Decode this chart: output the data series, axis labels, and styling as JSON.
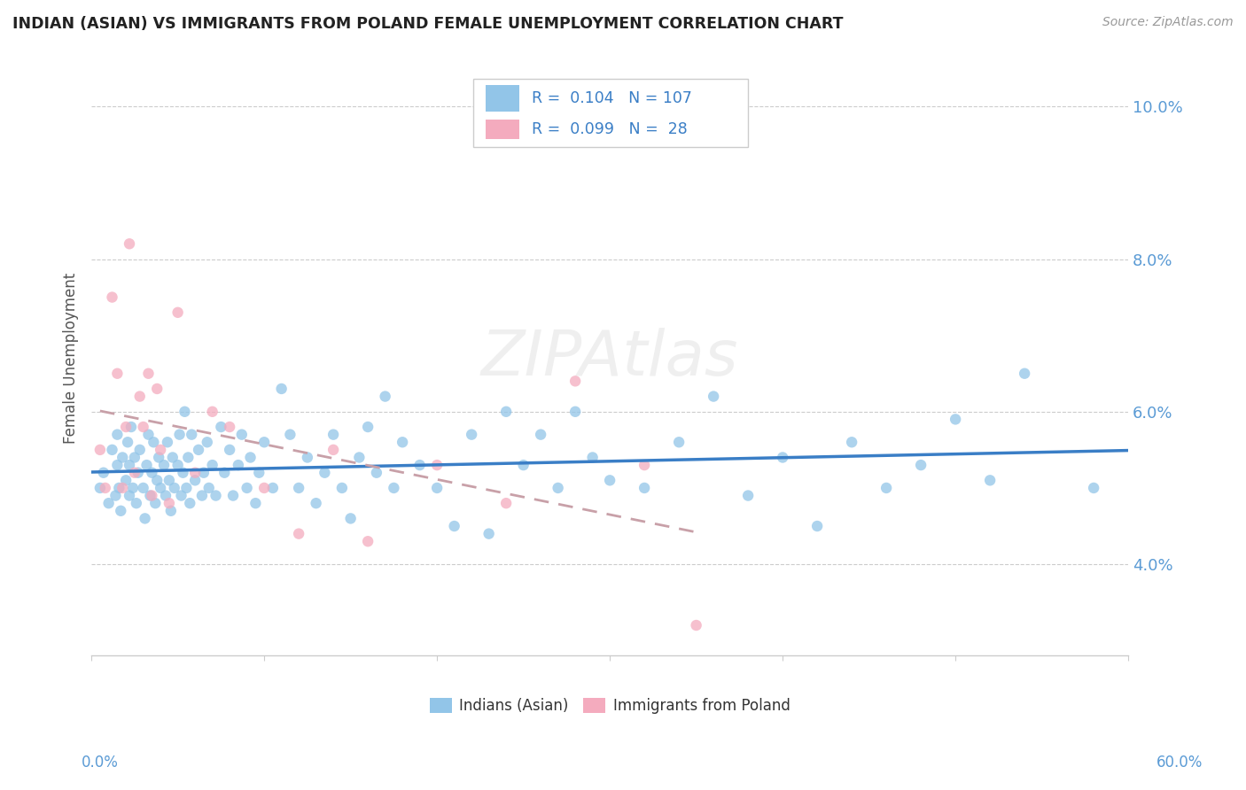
{
  "title": "INDIAN (ASIAN) VS IMMIGRANTS FROM POLAND FEMALE UNEMPLOYMENT CORRELATION CHART",
  "source_text": "Source: ZipAtlas.com",
  "ylabel": "Female Unemployment",
  "yticks": [
    "4.0%",
    "6.0%",
    "8.0%",
    "10.0%"
  ],
  "ytick_values": [
    0.04,
    0.06,
    0.08,
    0.1
  ],
  "xlim": [
    0.0,
    0.6
  ],
  "ylim": [
    0.028,
    0.106
  ],
  "legend_R1": "0.104",
  "legend_N1": "107",
  "legend_R2": "0.099",
  "legend_N2": "28",
  "color_indian": "#92C5E8",
  "color_poland": "#F4ABBE",
  "color_line_indian": "#3A7EC6",
  "color_line_poland": "#C8A0A8",
  "background_color": "#FFFFFF",
  "indian_x": [
    0.005,
    0.007,
    0.01,
    0.012,
    0.014,
    0.015,
    0.015,
    0.016,
    0.017,
    0.018,
    0.02,
    0.021,
    0.022,
    0.022,
    0.023,
    0.024,
    0.025,
    0.026,
    0.027,
    0.028,
    0.03,
    0.031,
    0.032,
    0.033,
    0.034,
    0.035,
    0.036,
    0.037,
    0.038,
    0.039,
    0.04,
    0.042,
    0.043,
    0.044,
    0.045,
    0.046,
    0.047,
    0.048,
    0.05,
    0.051,
    0.052,
    0.053,
    0.054,
    0.055,
    0.056,
    0.057,
    0.058,
    0.06,
    0.062,
    0.064,
    0.065,
    0.067,
    0.068,
    0.07,
    0.072,
    0.075,
    0.077,
    0.08,
    0.082,
    0.085,
    0.087,
    0.09,
    0.092,
    0.095,
    0.097,
    0.1,
    0.105,
    0.11,
    0.115,
    0.12,
    0.125,
    0.13,
    0.135,
    0.14,
    0.145,
    0.15,
    0.155,
    0.16,
    0.165,
    0.17,
    0.175,
    0.18,
    0.19,
    0.2,
    0.21,
    0.22,
    0.23,
    0.24,
    0.25,
    0.26,
    0.27,
    0.28,
    0.29,
    0.3,
    0.32,
    0.34,
    0.36,
    0.38,
    0.4,
    0.42,
    0.44,
    0.46,
    0.48,
    0.5,
    0.52,
    0.54,
    0.58
  ],
  "indian_y": [
    0.05,
    0.052,
    0.048,
    0.055,
    0.049,
    0.053,
    0.057,
    0.05,
    0.047,
    0.054,
    0.051,
    0.056,
    0.049,
    0.053,
    0.058,
    0.05,
    0.054,
    0.048,
    0.052,
    0.055,
    0.05,
    0.046,
    0.053,
    0.057,
    0.049,
    0.052,
    0.056,
    0.048,
    0.051,
    0.054,
    0.05,
    0.053,
    0.049,
    0.056,
    0.051,
    0.047,
    0.054,
    0.05,
    0.053,
    0.057,
    0.049,
    0.052,
    0.06,
    0.05,
    0.054,
    0.048,
    0.057,
    0.051,
    0.055,
    0.049,
    0.052,
    0.056,
    0.05,
    0.053,
    0.049,
    0.058,
    0.052,
    0.055,
    0.049,
    0.053,
    0.057,
    0.05,
    0.054,
    0.048,
    0.052,
    0.056,
    0.05,
    0.063,
    0.057,
    0.05,
    0.054,
    0.048,
    0.052,
    0.057,
    0.05,
    0.046,
    0.054,
    0.058,
    0.052,
    0.062,
    0.05,
    0.056,
    0.053,
    0.05,
    0.045,
    0.057,
    0.044,
    0.06,
    0.053,
    0.057,
    0.05,
    0.06,
    0.054,
    0.051,
    0.05,
    0.056,
    0.062,
    0.049,
    0.054,
    0.045,
    0.056,
    0.05,
    0.053,
    0.059,
    0.051,
    0.065,
    0.05
  ],
  "poland_x": [
    0.005,
    0.008,
    0.012,
    0.015,
    0.018,
    0.02,
    0.022,
    0.025,
    0.028,
    0.03,
    0.033,
    0.035,
    0.038,
    0.04,
    0.045,
    0.05,
    0.06,
    0.07,
    0.08,
    0.1,
    0.12,
    0.14,
    0.16,
    0.2,
    0.24,
    0.28,
    0.32,
    0.35
  ],
  "poland_y": [
    0.055,
    0.05,
    0.075,
    0.065,
    0.05,
    0.058,
    0.082,
    0.052,
    0.062,
    0.058,
    0.065,
    0.049,
    0.063,
    0.055,
    0.048,
    0.073,
    0.052,
    0.06,
    0.058,
    0.05,
    0.044,
    0.055,
    0.043,
    0.053,
    0.048,
    0.064,
    0.053,
    0.032
  ]
}
